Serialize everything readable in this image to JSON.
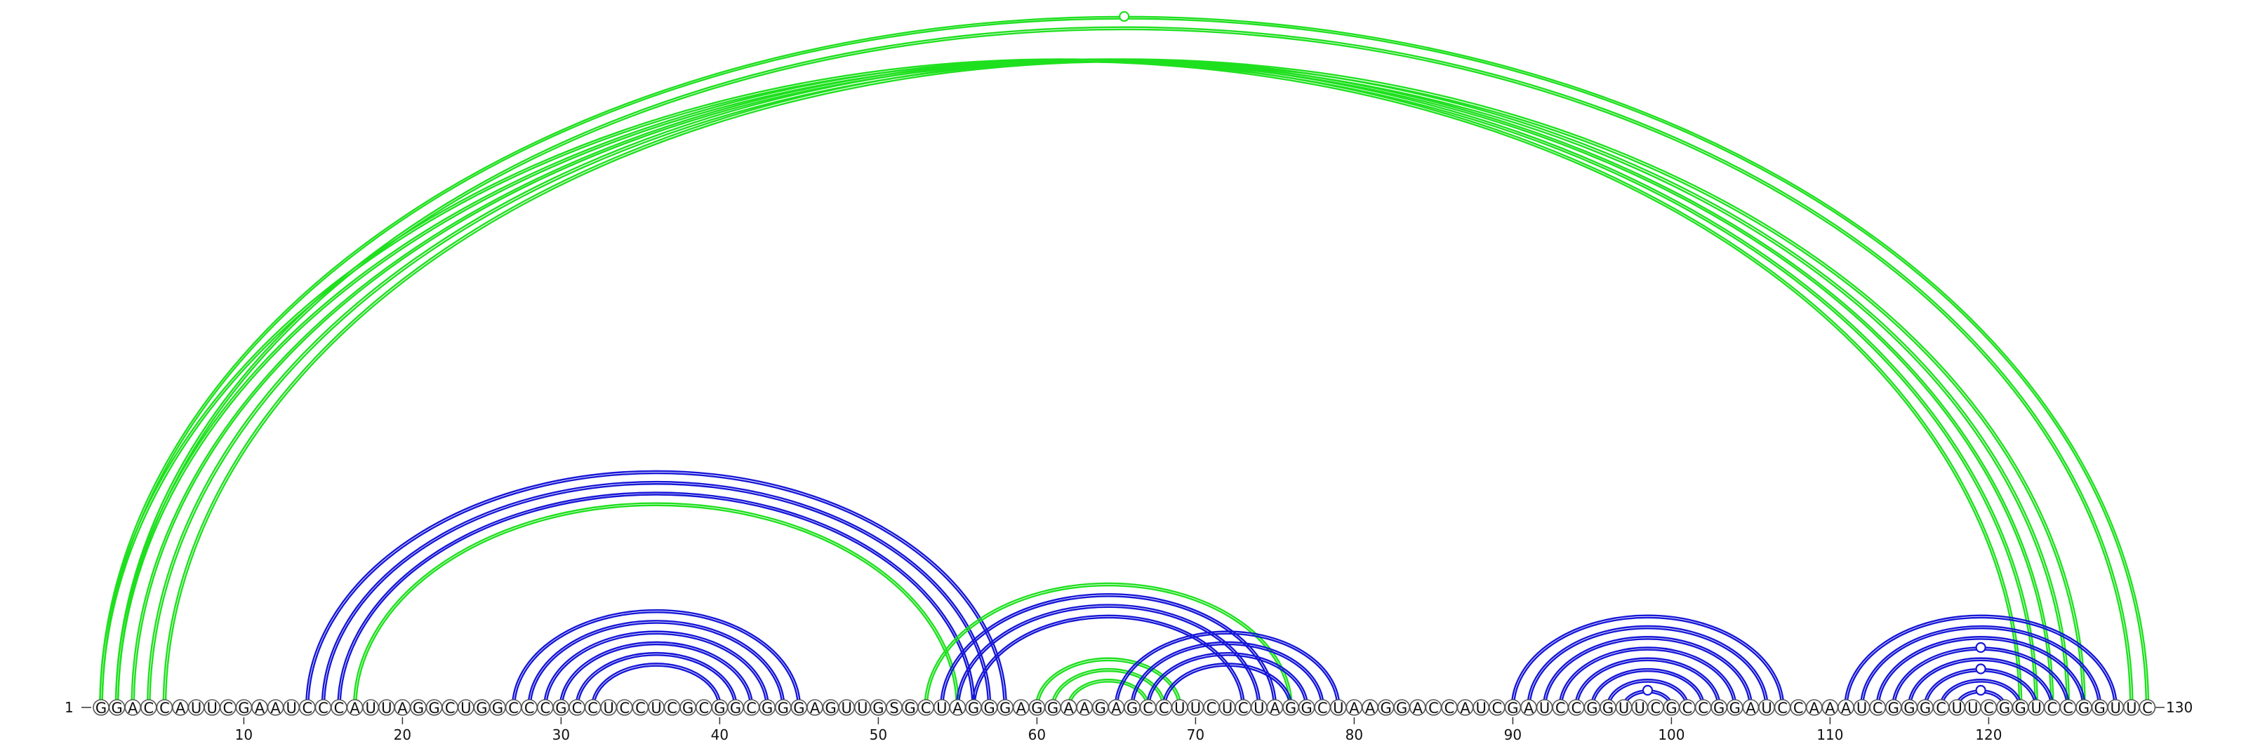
{
  "sequence": "GGACCAUUCGAAUCCCAUUAGGCUGGCCCGCCUCCUCGCGGCGGGAGUUGSGCUAGGGAGGAAGAGCCUUCUCUAGGCUAAGGACCAUCGAUCCGGUUCGCCGGAUCCAAAUCGGGCUUCGGUCCGGUUC",
  "left_label": "1",
  "right_label": "130",
  "ticks": [
    "10",
    "20",
    "30",
    "40",
    "50",
    "60",
    "70",
    "80",
    "90",
    "100",
    "110",
    "120"
  ],
  "colors": {
    "green": "#1ee01e",
    "blue": "#1616d8"
  },
  "arcs": [
    {
      "i": 1,
      "j": 130,
      "color": "green"
    },
    {
      "i": 2,
      "j": 129,
      "color": "green"
    },
    {
      "i": 1,
      "j": 122,
      "color": "green"
    },
    {
      "i": 2,
      "j": 123,
      "color": "green"
    },
    {
      "i": 3,
      "j": 124,
      "color": "green"
    },
    {
      "i": 4,
      "j": 125,
      "color": "green"
    },
    {
      "i": 5,
      "j": 126,
      "color": "green"
    },
    {
      "i": 14,
      "j": 58,
      "color": "blue"
    },
    {
      "i": 15,
      "j": 57,
      "color": "blue"
    },
    {
      "i": 16,
      "j": 56,
      "color": "blue"
    },
    {
      "i": 17,
      "j": 55,
      "color": "green"
    },
    {
      "i": 27,
      "j": 45,
      "color": "blue"
    },
    {
      "i": 28,
      "j": 44,
      "color": "blue"
    },
    {
      "i": 29,
      "j": 43,
      "color": "blue"
    },
    {
      "i": 30,
      "j": 42,
      "color": "blue"
    },
    {
      "i": 31,
      "j": 41,
      "color": "blue"
    },
    {
      "i": 32,
      "j": 40,
      "color": "blue"
    },
    {
      "i": 53,
      "j": 76,
      "color": "green"
    },
    {
      "i": 54,
      "j": 75,
      "color": "blue"
    },
    {
      "i": 55,
      "j": 74,
      "color": "blue"
    },
    {
      "i": 56,
      "j": 73,
      "color": "blue"
    },
    {
      "i": 60,
      "j": 69,
      "color": "green"
    },
    {
      "i": 61,
      "j": 68,
      "color": "green"
    },
    {
      "i": 62,
      "j": 67,
      "color": "green"
    },
    {
      "i": 65,
      "j": 79,
      "color": "blue"
    },
    {
      "i": 66,
      "j": 78,
      "color": "blue"
    },
    {
      "i": 67,
      "j": 77,
      "color": "blue"
    },
    {
      "i": 68,
      "j": 76,
      "color": "blue"
    },
    {
      "i": 90,
      "j": 107,
      "color": "blue"
    },
    {
      "i": 91,
      "j": 106,
      "color": "blue"
    },
    {
      "i": 92,
      "j": 105,
      "color": "blue"
    },
    {
      "i": 93,
      "j": 104,
      "color": "blue"
    },
    {
      "i": 94,
      "j": 103,
      "color": "blue"
    },
    {
      "i": 95,
      "j": 102,
      "color": "blue"
    },
    {
      "i": 96,
      "j": 101,
      "color": "blue"
    },
    {
      "i": 97,
      "j": 100,
      "color": "blue"
    },
    {
      "i": 111,
      "j": 128,
      "color": "blue"
    },
    {
      "i": 112,
      "j": 127,
      "color": "blue"
    },
    {
      "i": 113,
      "j": 126,
      "color": "blue"
    },
    {
      "i": 114,
      "j": 125,
      "color": "blue"
    },
    {
      "i": 115,
      "j": 124,
      "color": "blue"
    },
    {
      "i": 116,
      "j": 123,
      "color": "blue"
    },
    {
      "i": 117,
      "j": 122,
      "color": "blue"
    },
    {
      "i": 118,
      "j": 121,
      "color": "blue"
    }
  ]
}
